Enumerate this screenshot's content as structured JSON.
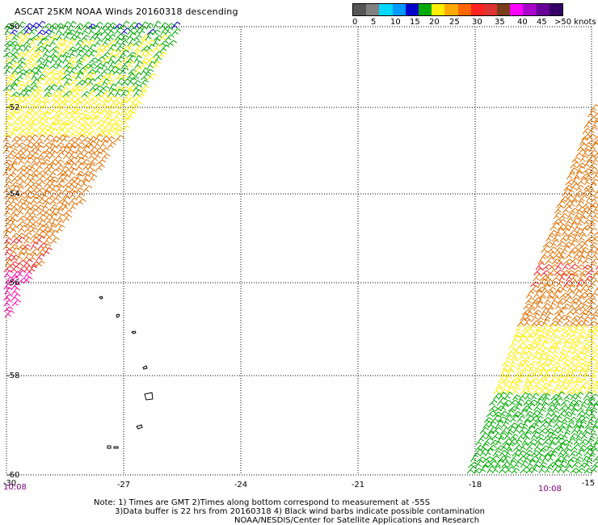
{
  "title": "ASCAT 25KM NOAA Winds 20160318 descending",
  "legend": {
    "colors": [
      "#555555",
      "#808080",
      "#00d8ff",
      "#0099ff",
      "#0000cc",
      "#00aa00",
      "#ffee00",
      "#ffaa00",
      "#ff6600",
      "#ff2222",
      "#dd3333",
      "#7a3d1a",
      "#ff00ff",
      "#aa00cc",
      "#660099",
      "#330066"
    ],
    "labels": [
      "0",
      "5",
      "10",
      "15",
      "20",
      "25",
      "30",
      "35",
      "40",
      "45",
      ">50 knots"
    ]
  },
  "axes": {
    "lat_labels": [
      "-50",
      "-52",
      "-54",
      "-56",
      "-58",
      "-60"
    ],
    "lon_labels": [
      "-30",
      "-27",
      "-24",
      "-21",
      "-18",
      "-15"
    ]
  },
  "times": {
    "left": "10:08",
    "right": "10:08"
  },
  "notes": {
    "line1": "Note: 1) Times are GMT 2)Times along bottom correspond to measurement at -55S",
    "line2": "3)Data buffer is 22 hrs from 20160318 4) Black wind barbs indicate possible contamination",
    "line3": "NOAA/NESDIS/Center for Satellite Applications and Research"
  },
  "wind_colors": {
    "blue": "#0000cc",
    "green": "#00aa00",
    "yellow": "#ffee00",
    "orange": "#e07000",
    "red": "#ee2222",
    "magenta": "#ff00aa"
  }
}
